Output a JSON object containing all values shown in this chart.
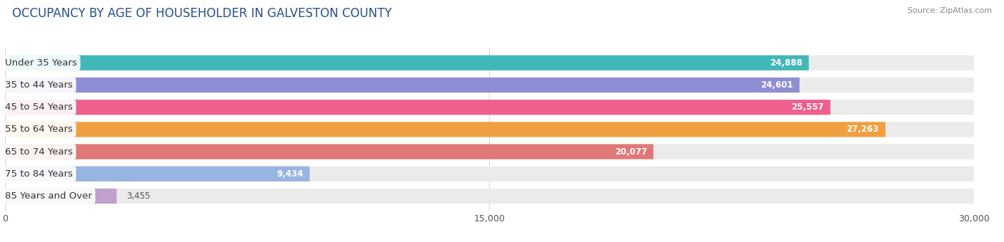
{
  "title": "OCCUPANCY BY AGE OF HOUSEHOLDER IN GALVESTON COUNTY",
  "source": "Source: ZipAtlas.com",
  "categories": [
    "Under 35 Years",
    "35 to 44 Years",
    "45 to 54 Years",
    "55 to 64 Years",
    "65 to 74 Years",
    "75 to 84 Years",
    "85 Years and Over"
  ],
  "values": [
    24888,
    24601,
    25557,
    27263,
    20077,
    9434,
    3455
  ],
  "bar_colors": [
    "#41b8b8",
    "#8e8ed6",
    "#ef5f8e",
    "#f0a040",
    "#e07878",
    "#98b4e0",
    "#c0a0cc"
  ],
  "xlim": [
    0,
    30000
  ],
  "xticks": [
    0,
    15000,
    30000
  ],
  "xticklabels": [
    "0",
    "15,000",
    "30,000"
  ],
  "background_color": "#ffffff",
  "bar_bg_color": "#ebebeb",
  "title_fontsize": 12,
  "source_fontsize": 8,
  "label_fontsize": 9.5,
  "value_fontsize": 8.5,
  "bar_height": 0.68
}
